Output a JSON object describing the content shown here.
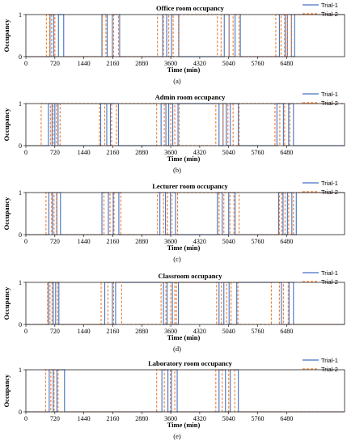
{
  "chart_data": [
    {
      "type": "line",
      "title": "Office room occupancy",
      "xlabel": "Time (min)",
      "ylabel": "Occupancy",
      "caption": "(a)",
      "xlim": [
        0,
        7920
      ],
      "ylim": [
        0,
        1
      ],
      "xticks": [
        0,
        720,
        1440,
        2160,
        2880,
        3600,
        4320,
        5040,
        5760,
        6480
      ],
      "yticks": [
        0,
        1
      ],
      "legend": "top-right",
      "series": [
        {
          "name": "Trial-1",
          "color": "#4472C4",
          "dash": "solid",
          "x": [
            600,
            690,
            810,
            940,
            1890,
            2020,
            2150,
            2330,
            3400,
            3500,
            3620,
            3800,
            4930,
            5050,
            5200,
            5330,
            6300,
            6450,
            6500,
            6600,
            6680
          ]
        },
        {
          "name": "Trial-2",
          "color": "#ED7D31",
          "dash": "dashed",
          "x": [
            510,
            590,
            640,
            720,
            1900,
            1990,
            2180,
            2300,
            3270,
            3420,
            3550,
            3660,
            3790,
            4760,
            4850,
            5050,
            5150,
            5300,
            6210,
            6340,
            6430,
            6500,
            6600
          ]
        }
      ]
    },
    {
      "type": "line",
      "title": "Admin room occupancy",
      "xlabel": "Time (min)",
      "ylabel": "Occupancy",
      "caption": "(b)",
      "xlim": [
        0,
        7920
      ],
      "ylim": [
        0,
        1
      ],
      "xticks": [
        0,
        720,
        1440,
        2160,
        2880,
        3600,
        4320,
        5040,
        5760,
        6480
      ],
      "yticks": [
        0,
        1
      ],
      "legend": "top-right",
      "series": [
        {
          "name": "Trial-1",
          "color": "#4472C4",
          "dash": "solid",
          "x": [
            560,
            650,
            720,
            800,
            1860,
            2010,
            2100,
            2300,
            3360,
            3480,
            3550,
            3650,
            3780,
            4800,
            4900,
            4980,
            5080,
            5280,
            6240,
            6400,
            6530,
            6650
          ]
        },
        {
          "name": "Trial-2",
          "color": "#ED7D31",
          "dash": "dashed",
          "x": [
            380,
            610,
            680,
            760,
            850,
            1830,
            1960,
            2130,
            2250,
            3250,
            3440,
            3600,
            3700,
            3810,
            4720,
            4900,
            5020,
            5150,
            5300,
            6190,
            6310,
            6430,
            6560
          ]
        }
      ]
    },
    {
      "type": "line",
      "title": "Lecturer room occupancy",
      "xlabel": "Time (min)",
      "ylabel": "Occupancy",
      "caption": "(c)",
      "xlim": [
        0,
        7920
      ],
      "ylim": [
        0,
        1
      ],
      "xticks": [
        0,
        720,
        1440,
        2160,
        2880,
        3600,
        4320,
        5040,
        5760,
        6480
      ],
      "yticks": [
        0,
        1
      ],
      "legend": "top-right",
      "series": [
        {
          "name": "Trial-1",
          "color": "#4472C4",
          "dash": "solid",
          "x": [
            570,
            660,
            770,
            860,
            1890,
            2050,
            2170,
            2310,
            3330,
            3470,
            3590,
            3720,
            4760,
            4880,
            5040,
            5200,
            6280,
            6390,
            6500,
            6610,
            6720
          ]
        },
        {
          "name": "Trial-2",
          "color": "#ED7D31",
          "dash": "dashed",
          "x": [
            500,
            640,
            700,
            760,
            1940,
            2090,
            2190,
            2360,
            3270,
            3420,
            3520,
            3630,
            3770,
            4800,
            4920,
            5070,
            5170,
            5300,
            6300,
            6360,
            6440,
            6530,
            6650
          ]
        }
      ]
    },
    {
      "type": "line",
      "title": "Classroom occupancy",
      "xlabel": "Time (min)",
      "ylabel": "Occupancy",
      "caption": "(d)",
      "xlim": [
        0,
        7920
      ],
      "ylim": [
        0,
        1
      ],
      "xticks": [
        0,
        720,
        1440,
        2160,
        2880,
        3600,
        4320,
        5040,
        5760,
        6480
      ],
      "yticks": [
        0,
        1
      ],
      "legend": "top-right",
      "series": [
        {
          "name": "Trial-1",
          "color": "#4472C4",
          "dash": "solid",
          "x": [
            560,
            680,
            740,
            820,
            1960,
            2150,
            2230,
            3420,
            3510,
            3640,
            3790,
            4800,
            4920,
            5050,
            5240,
            6350,
            6540,
            6650
          ]
        },
        {
          "name": "Trial-2",
          "color": "#ED7D31",
          "dash": "dashed",
          "x": [
            540,
            600,
            650,
            790,
            1870,
            2040,
            2180,
            2380,
            3360,
            3480,
            3600,
            3700,
            3740,
            4740,
            4860,
            4990,
            5100,
            5270,
            6100,
            6300,
            6400,
            6520
          ]
        }
      ]
    },
    {
      "type": "line",
      "title": "Laboratory room occupancy",
      "xlabel": "Time (min)",
      "ylabel": "Occupancy",
      "caption": "(e)",
      "xlim": [
        0,
        7920
      ],
      "ylim": [
        0,
        1
      ],
      "xticks": [
        0,
        720,
        1440,
        2160,
        2880,
        3600,
        4320,
        5040,
        5760,
        6480
      ],
      "yticks": [
        0,
        1
      ],
      "legend": "top-right",
      "series": [
        {
          "name": "Trial-1",
          "color": "#4472C4",
          "dash": "solid",
          "x": [
            580,
            680,
            770,
            960,
            3380,
            3530,
            3620,
            3760,
            4800,
            4960,
            5080,
            5280
          ]
        },
        {
          "name": "Trial-2",
          "color": "#ED7D31",
          "dash": "dashed",
          "x": [
            490,
            620,
            700,
            800,
            3250,
            3440,
            3590,
            3700,
            4720,
            4880,
            5040,
            5190
          ]
        }
      ]
    }
  ]
}
